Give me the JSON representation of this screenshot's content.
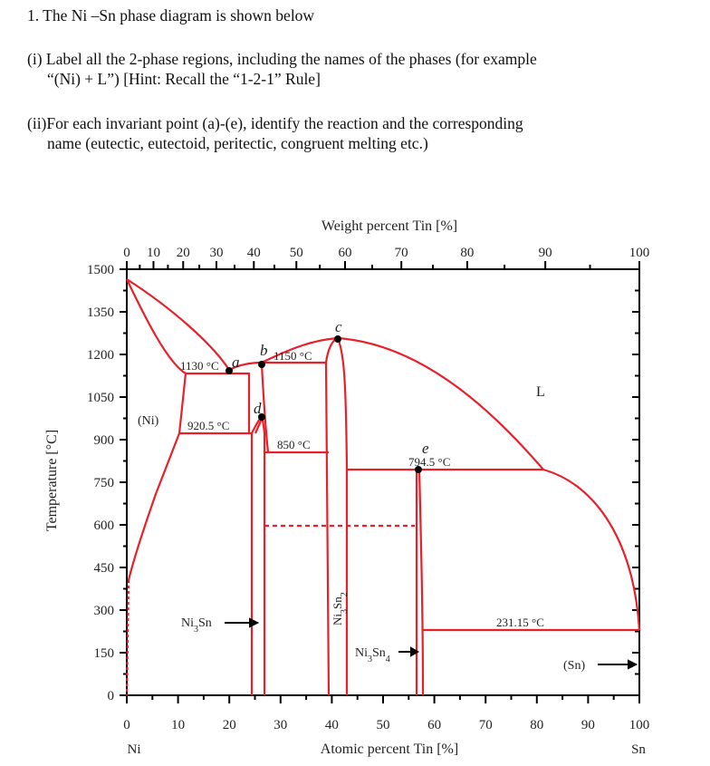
{
  "question": {
    "title": "1. The Ni –Sn phase diagram is shown below",
    "part1_line1": "(i) Label all the 2-phase regions, including the names of the phases (for example",
    "part1_line2": "“(Ni) + L”)  [Hint: Recall the “1-2-1” Rule]",
    "part2_line1": "(ii)For each invariant point (a)-(e), identify the reaction and the corresponding",
    "part2_line2": "name (eutectic, eutectoid, peritectic, congruent melting etc.)"
  },
  "diagram": {
    "top_axis_title": "Weight percent Tin [%]",
    "top_ticks": [
      "0",
      "10",
      "20",
      "30",
      "40",
      "50",
      "60",
      "70",
      "80",
      "90",
      "100"
    ],
    "y_axis_title": "Temperature [°C]",
    "y_ticks": [
      "0",
      "150",
      "300",
      "450",
      "600",
      "750",
      "900",
      "1050",
      "1200",
      "1350",
      "1500"
    ],
    "x_axis_title": "Atomic percent Tin [%]",
    "x_ticks": [
      "0",
      "10",
      "20",
      "30",
      "40",
      "50",
      "60",
      "70",
      "80",
      "90",
      "100"
    ],
    "x_left_element": "Ni",
    "x_right_element": "Sn",
    "points": [
      "a",
      "b",
      "c",
      "d",
      "e"
    ],
    "temps": {
      "t1130": "1130 °C",
      "t1150": "1150 °C",
      "t920": "920.5 °C",
      "t850": "850 °C",
      "t794": "794.5 °C",
      "t231": "231.15 °C"
    },
    "phases": {
      "ni": "(Ni)",
      "liquid": "L",
      "sn": "(Sn)",
      "ni3sn": "Ni3Sn",
      "ni3sn2": "Ni3Sn2",
      "ni3sn4": "Ni3Sn4"
    },
    "line_color": "#e8202a"
  }
}
